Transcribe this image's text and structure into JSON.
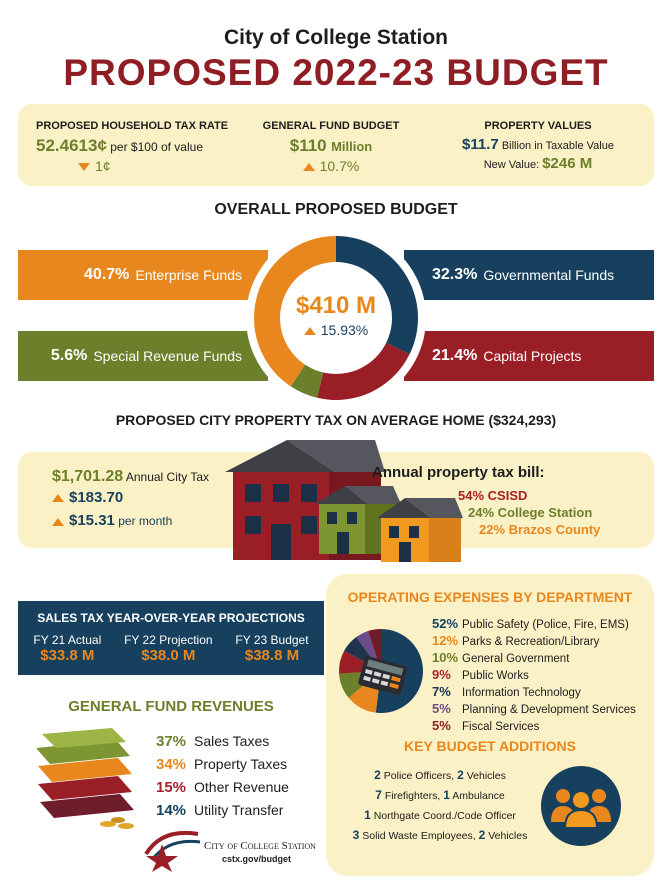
{
  "header": {
    "subtitle": "City of College Station",
    "title": "PROPOSED 2022-23 BUDGET"
  },
  "summary": {
    "tax_rate": {
      "label": "PROPOSED HOUSEHOLD TAX RATE",
      "value": "52.4613¢",
      "unit": "per $100 of value",
      "change": "1¢"
    },
    "general_fund": {
      "label": "GENERAL FUND BUDGET",
      "value": "$110",
      "unit": "Million",
      "change": "10.7%"
    },
    "property": {
      "label": "PROPERTY VALUES",
      "value": "$11.7",
      "unit": "Billion in Taxable Value",
      "new_label": "New Value:",
      "new_value": "$246 M"
    }
  },
  "overall": {
    "heading": "OVERALL PROPOSED BUDGET",
    "total": "$410 M",
    "change": "15.93%",
    "segments": [
      {
        "pct": "40.7%",
        "label": "Enterprise Funds",
        "value": 40.7,
        "color": "#e8871e"
      },
      {
        "pct": "32.3%",
        "label": "Governmental Funds",
        "value": 32.3,
        "color": "#17405e"
      },
      {
        "pct": "21.4%",
        "label": "Capital Projects",
        "value": 21.4,
        "color": "#9a1e26"
      },
      {
        "pct": "5.6%",
        "label": "Special Revenue Funds",
        "value": 5.6,
        "color": "#6c7f2a"
      }
    ]
  },
  "property_tax": {
    "heading": "PROPOSED CITY PROPERTY TAX ON AVERAGE HOME ($324,293)",
    "annual_value": "$1,701.28",
    "annual_label": "Annual City Tax",
    "change_year": "$183.70",
    "change_month": "$15.31",
    "per_month": "per month",
    "bill_heading": "Annual property tax bill:",
    "bill": [
      {
        "pct": "54%",
        "name": "CSISD"
      },
      {
        "pct": "24%",
        "name": "College Station"
      },
      {
        "pct": "22%",
        "name": "Brazos County"
      }
    ]
  },
  "sales_tax": {
    "heading": "SALES TAX YEAR-OVER-YEAR PROJECTIONS",
    "items": [
      {
        "label": "FY 21 Actual",
        "value": "$33.8 M"
      },
      {
        "label": "FY 22 Projection",
        "value": "$38.0 M"
      },
      {
        "label": "FY 23 Budget",
        "value": "$38.8 M"
      }
    ]
  },
  "operating": {
    "heading": "OPERATING EXPENSES BY DEPARTMENT",
    "items": [
      {
        "pct": "52%",
        "label": "Public Safety (Police, Fire, EMS)",
        "value": 52,
        "color": "#17405e"
      },
      {
        "pct": "12%",
        "label": "Parks & Recreation/Library",
        "value": 12,
        "color": "#e8871e"
      },
      {
        "pct": "10%",
        "label": "General Government",
        "value": 10,
        "color": "#6c7f2a"
      },
      {
        "pct": "9%",
        "label": "Public Works",
        "value": 9,
        "color": "#9a1e26"
      },
      {
        "pct": "7%",
        "label": "Information Technology",
        "value": 7,
        "color": "#22344d"
      },
      {
        "pct": "5%",
        "label": "Planning & Development Services",
        "value": 5,
        "color": "#6b4c8a"
      },
      {
        "pct": "5%",
        "label": "Fiscal Services",
        "value": 5,
        "color": "#6e1d2a"
      }
    ]
  },
  "key_additions": {
    "heading": "KEY BUDGET ADDITIONS",
    "rows": [
      {
        "n1": "2",
        "t1": "Police Officers,",
        "n2": "2",
        "t2": "Vehicles"
      },
      {
        "n1": "7",
        "t1": "Firefighters,",
        "n2": "1",
        "t2": "Ambulance"
      },
      {
        "n1": "1",
        "t1": "Northgate Coord./Code Officer",
        "n2": "",
        "t2": ""
      },
      {
        "n1": "3",
        "t1": "Solid Waste Employees,",
        "n2": "2",
        "t2": "Vehicles"
      }
    ]
  },
  "revenues": {
    "heading": "GENERAL FUND REVENUES",
    "items": [
      {
        "pct": "37%",
        "label": "Sales Taxes"
      },
      {
        "pct": "34%",
        "label": "Property Taxes"
      },
      {
        "pct": "15%",
        "label": "Other Revenue"
      },
      {
        "pct": "14%",
        "label": "Utility Transfer"
      }
    ]
  },
  "footer": {
    "logo_text": "City of College Station",
    "url": "cstx.gov/budget"
  }
}
